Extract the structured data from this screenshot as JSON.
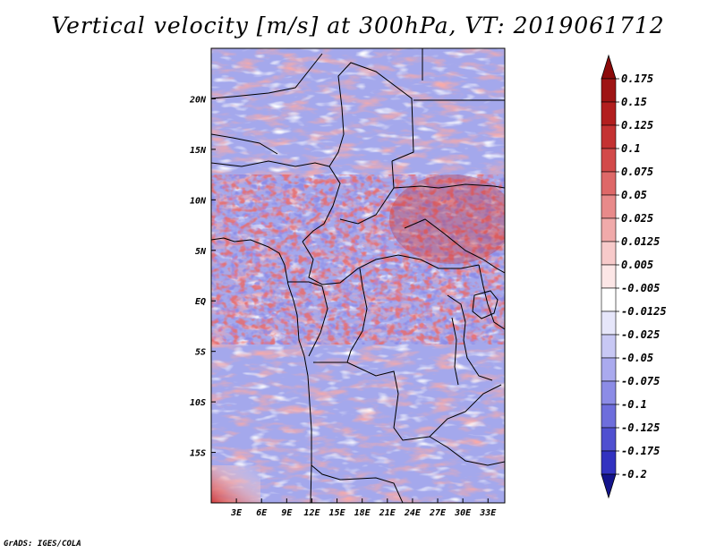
{
  "title": "Vertical velocity [m/s] at 300hPa, VT: 2019061712",
  "credit": "GrADS: IGES/COLA",
  "map": {
    "lon_range": [
      0,
      35
    ],
    "lat_range": [
      -20,
      25
    ],
    "lon_ticks": [
      {
        "value": 3,
        "label": "3E"
      },
      {
        "value": 6,
        "label": "6E"
      },
      {
        "value": 9,
        "label": "9E"
      },
      {
        "value": 12,
        "label": "12E"
      },
      {
        "value": 15,
        "label": "15E"
      },
      {
        "value": 18,
        "label": "18E"
      },
      {
        "value": 21,
        "label": "21E"
      },
      {
        "value": 24,
        "label": "24E"
      },
      {
        "value": 27,
        "label": "27E"
      },
      {
        "value": 30,
        "label": "30E"
      },
      {
        "value": 33,
        "label": "33E"
      }
    ],
    "lat_ticks": [
      {
        "value": 20,
        "label": "20N"
      },
      {
        "value": 15,
        "label": "15N"
      },
      {
        "value": 10,
        "label": "10N"
      },
      {
        "value": 5,
        "label": "5N"
      },
      {
        "value": 0,
        "label": "EQ"
      },
      {
        "value": -5,
        "label": "5S"
      },
      {
        "value": -10,
        "label": "10S"
      },
      {
        "value": -15,
        "label": "15S"
      }
    ]
  },
  "colorbar": {
    "levels": [
      {
        "label": "0.175",
        "color": "#9e1414"
      },
      {
        "label": "0.15",
        "color": "#b21e1e"
      },
      {
        "label": "0.125",
        "color": "#c43232"
      },
      {
        "label": "0.1",
        "color": "#d24a4a"
      },
      {
        "label": "0.075",
        "color": "#de6868"
      },
      {
        "label": "0.05",
        "color": "#e88a8a"
      },
      {
        "label": "0.025",
        "color": "#f0aaaa"
      },
      {
        "label": "0.0125",
        "color": "#f7caca"
      },
      {
        "label": "0.005",
        "color": "#fce6e6"
      },
      {
        "label": "-0.005",
        "color": "#ffffff"
      },
      {
        "label": "-0.0125",
        "color": "#e6e6fa"
      },
      {
        "label": "-0.025",
        "color": "#c8c8f4"
      },
      {
        "label": "-0.05",
        "color": "#aaaaee"
      },
      {
        "label": "-0.075",
        "color": "#8c8ce6"
      },
      {
        "label": "-0.1",
        "color": "#6e6edc"
      },
      {
        "label": "-0.125",
        "color": "#5050d0"
      },
      {
        "label": "-0.175",
        "color": "#3232c0"
      },
      {
        "label": "-0.2",
        "color": "#1e1ea8"
      }
    ],
    "top_color": "#8c0a0a",
    "bottom_color": "#14148c"
  }
}
